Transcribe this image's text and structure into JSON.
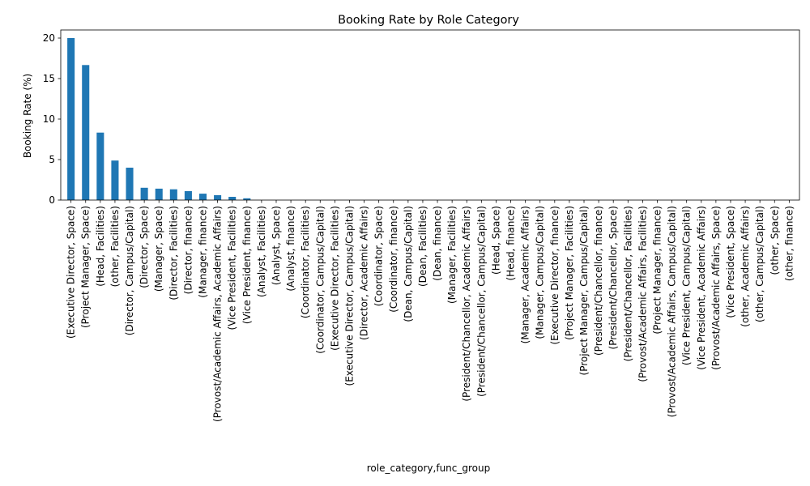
{
  "chart_data": {
    "type": "bar",
    "title": "Booking Rate by Role Category",
    "xlabel": "role_category,func_group",
    "ylabel": "Booking Rate (%)",
    "ylim": [
      0,
      21
    ],
    "yticks": [
      0,
      5,
      10,
      15,
      20
    ],
    "grid": false,
    "legend": "none",
    "bar_color": "#1f77b4",
    "categories": [
      "(Executive Director, Space)",
      "(Project Manager, Space)",
      "(Head, Facilities)",
      "(other, Facilities)",
      "(Director, Campus/Capital)",
      "(Director, Space)",
      "(Manager, Space)",
      "(Director, Facilities)",
      "(Director, finance)",
      "(Manager, finance)",
      "(Provost/Academic Affairs, Academic Affairs)",
      "(Vice President, Facilities)",
      "(Vice President, finance)",
      "(Analyst, Facilities)",
      "(Analyst, Space)",
      "(Analyst, finance)",
      "(Coordinator, Facilities)",
      "(Coordinator, Campus/Capital)",
      "(Executive Director, Facilities)",
      "(Executive Director, Campus/Capital)",
      "(Director, Academic Affairs)",
      "(Coordinator, Space)",
      "(Coordinator, finance)",
      "(Dean, Campus/Capital)",
      "(Dean, Facilities)",
      "(Dean, finance)",
      "(Manager, Facilities)",
      "(President/Chancellor, Academic Affairs)",
      "(President/Chancellor, Campus/Capital)",
      "(Head, Space)",
      "(Head, finance)",
      "(Manager, Academic Affairs)",
      "(Manager, Campus/Capital)",
      "(Executive Director, finance)",
      "(Project Manager, Facilities)",
      "(Project Manager, Campus/Capital)",
      "(President/Chancellor, finance)",
      "(President/Chancellor, Space)",
      "(President/Chancellor, Facilities)",
      "(Provost/Academic Affairs, Facilities)",
      "(Project Manager, finance)",
      "(Provost/Academic Affairs, Campus/Capital)",
      "(Vice President, Campus/Capital)",
      "(Vice President, Academic Affairs)",
      "(Provost/Academic Affairs, Space)",
      "(Vice President, Space)",
      "(other, Academic Affairs)",
      "(other, Campus/Capital)",
      "(other, Space)",
      "(other, finance)"
    ],
    "values": [
      20.0,
      16.67,
      8.33,
      4.88,
      4.0,
      1.52,
      1.41,
      1.33,
      1.11,
      0.79,
      0.61,
      0.4,
      0.22,
      0,
      0,
      0,
      0,
      0,
      0,
      0,
      0,
      0,
      0,
      0,
      0,
      0,
      0,
      0,
      0,
      0,
      0,
      0,
      0,
      0,
      0,
      0,
      0,
      0,
      0,
      0,
      0,
      0,
      0,
      0,
      0,
      0,
      0,
      0,
      0,
      0
    ]
  }
}
